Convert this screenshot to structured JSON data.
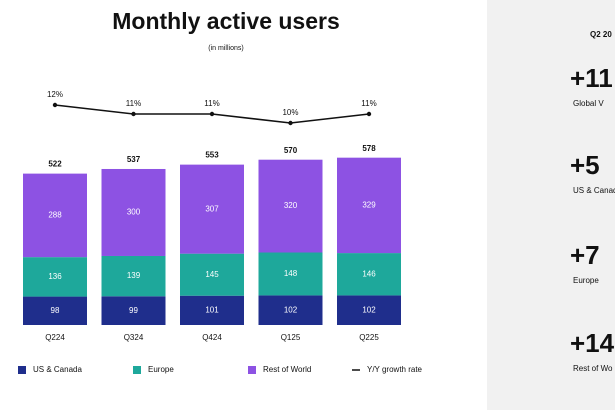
{
  "chart_data": {
    "type": "bar",
    "stacked": true,
    "title": "Monthly active users",
    "subtitle": "(in millions)",
    "categories": [
      "Q224",
      "Q324",
      "Q424",
      "Q125",
      "Q225"
    ],
    "series": [
      {
        "name": "US & Canada",
        "color": "#1f2e8c",
        "values": [
          98,
          99,
          101,
          102,
          102
        ]
      },
      {
        "name": "Europe",
        "color": "#1ea89b",
        "values": [
          136,
          139,
          145,
          148,
          146
        ]
      },
      {
        "name": "Rest of World",
        "color": "#8d52e3",
        "values": [
          288,
          300,
          307,
          320,
          329
        ]
      },
      {
        "name": "Y/Y growth rate",
        "type": "line",
        "color": "#111111",
        "values": [
          12,
          11,
          11,
          10,
          11
        ],
        "value_labels": [
          "12%",
          "11%",
          "11%",
          "10%",
          "11%"
        ]
      }
    ],
    "totals": [
      522,
      537,
      553,
      570,
      578
    ]
  },
  "side_panel": {
    "heading": "Q2 20",
    "items": [
      {
        "value": "+11",
        "label": "Global V"
      },
      {
        "value": "+5",
        "label": "US & Canada"
      },
      {
        "value": "+7",
        "label": "Europe"
      },
      {
        "value": "+14",
        "label": "Rest of Wo"
      }
    ]
  }
}
